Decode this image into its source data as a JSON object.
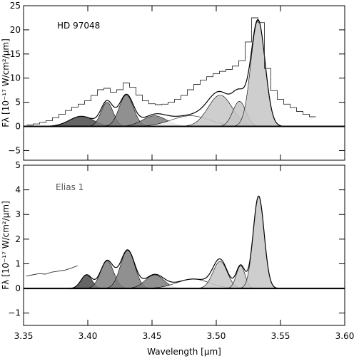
{
  "chart_data": {
    "type": "line",
    "xlabel": "Wavelength [µm]",
    "xlim": [
      3.35,
      3.6
    ],
    "x_ticks": [
      3.35,
      3.4,
      3.45,
      3.5,
      3.55,
      3.6
    ],
    "x_tick_labels": [
      "3.35",
      "3.40",
      "3.45",
      "3.50",
      "3.55",
      "3.60"
    ],
    "panels": [
      {
        "name": "top",
        "title": "HD 97048",
        "ylabel": "Fλ [10⁻¹⁷ W/cm²/µm]",
        "ylim": [
          -7,
          25
        ],
        "y_ticks": [
          -5,
          0,
          5,
          10,
          15,
          20,
          25
        ],
        "y_tick_labels": [
          "−5",
          "0",
          "5",
          "10",
          "15",
          "20",
          "25"
        ],
        "components": [
          {
            "center": 3.395,
            "amplitude": 2.1,
            "fwhm": 0.022,
            "shade": "#4a4a4a"
          },
          {
            "center": 3.415,
            "amplitude": 5.0,
            "fwhm": 0.011,
            "shade": "#7c7c7c"
          },
          {
            "center": 3.43,
            "amplitude": 6.5,
            "fwhm": 0.013,
            "shade": "#7c7c7c"
          },
          {
            "center": 3.452,
            "amplitude": 2.2,
            "fwhm": 0.022,
            "shade": "#7c7c7c"
          },
          {
            "center": 3.48,
            "amplitude": 2.2,
            "fwhm": 0.035,
            "shade": "#ffffff"
          },
          {
            "center": 3.503,
            "amplitude": 6.5,
            "fwhm": 0.022,
            "shade": "#c6c6c6"
          },
          {
            "center": 3.518,
            "amplitude": 5.2,
            "fwhm": 0.012,
            "shade": "#c6c6c6"
          },
          {
            "center": 3.5325,
            "amplitude": 22.0,
            "fwhm": 0.013,
            "shade": "#c6c6c6"
          }
        ],
        "observed": {
          "x": [
            3.355,
            3.36,
            3.365,
            3.37,
            3.375,
            3.38,
            3.385,
            3.39,
            3.395,
            3.4,
            3.405,
            3.41,
            3.415,
            3.42,
            3.425,
            3.43,
            3.435,
            3.44,
            3.445,
            3.45,
            3.455,
            3.46,
            3.465,
            3.47,
            3.475,
            3.48,
            3.485,
            3.49,
            3.495,
            3.5,
            3.505,
            3.51,
            3.515,
            3.52,
            3.525,
            3.53,
            3.535,
            3.54,
            3.545,
            3.55,
            3.555,
            3.56,
            3.565,
            3.57,
            3.575
          ],
          "y": [
            0.3,
            0.5,
            0.8,
            1.2,
            1.8,
            2.5,
            3.3,
            4.0,
            4.6,
            5.3,
            6.4,
            7.6,
            7.9,
            7.1,
            7.6,
            9.0,
            8.1,
            6.5,
            5.3,
            4.7,
            4.5,
            4.6,
            5.0,
            5.6,
            6.4,
            7.6,
            8.7,
            9.6,
            10.3,
            10.9,
            11.4,
            11.8,
            12.5,
            13.6,
            17.5,
            22.5,
            21.5,
            12.0,
            7.4,
            5.6,
            4.6,
            3.9,
            3.1,
            2.5,
            2.0
          ]
        }
      },
      {
        "name": "bottom",
        "title": "Elias 1",
        "ylabel": "Fλ [10⁻¹⁷ W/cm²/µm]",
        "ylim": [
          -1.5,
          5
        ],
        "y_ticks": [
          -1,
          0,
          1,
          2,
          3,
          4,
          5
        ],
        "y_tick_labels": [
          "−1",
          "0",
          "1",
          "2",
          "3",
          "4",
          "5"
        ],
        "components": [
          {
            "center": 3.399,
            "amplitude": 0.55,
            "fwhm": 0.01,
            "shade": "#4a4a4a"
          },
          {
            "center": 3.415,
            "amplitude": 1.12,
            "fwhm": 0.012,
            "shade": "#7c7c7c"
          },
          {
            "center": 3.431,
            "amplitude": 1.55,
            "fwhm": 0.013,
            "shade": "#7c7c7c"
          },
          {
            "center": 3.452,
            "amplitude": 0.55,
            "fwhm": 0.017,
            "shade": "#7c7c7c"
          },
          {
            "center": 3.482,
            "amplitude": 0.38,
            "fwhm": 0.03,
            "shade": "#ffffff"
          },
          {
            "center": 3.503,
            "amplitude": 1.1,
            "fwhm": 0.013,
            "shade": "#c6c6c6"
          },
          {
            "center": 3.519,
            "amplitude": 0.92,
            "fwhm": 0.008,
            "shade": "#c6c6c6"
          },
          {
            "center": 3.533,
            "amplitude": 3.75,
            "fwhm": 0.01,
            "shade": "#c6c6c6"
          }
        ],
        "observed": {
          "x": [
            3.352,
            3.357,
            3.362,
            3.367,
            3.372,
            3.377,
            3.382,
            3.387,
            3.392
          ],
          "y": [
            0.5,
            0.55,
            0.6,
            0.58,
            0.66,
            0.7,
            0.74,
            0.82,
            0.92
          ]
        }
      }
    ]
  }
}
